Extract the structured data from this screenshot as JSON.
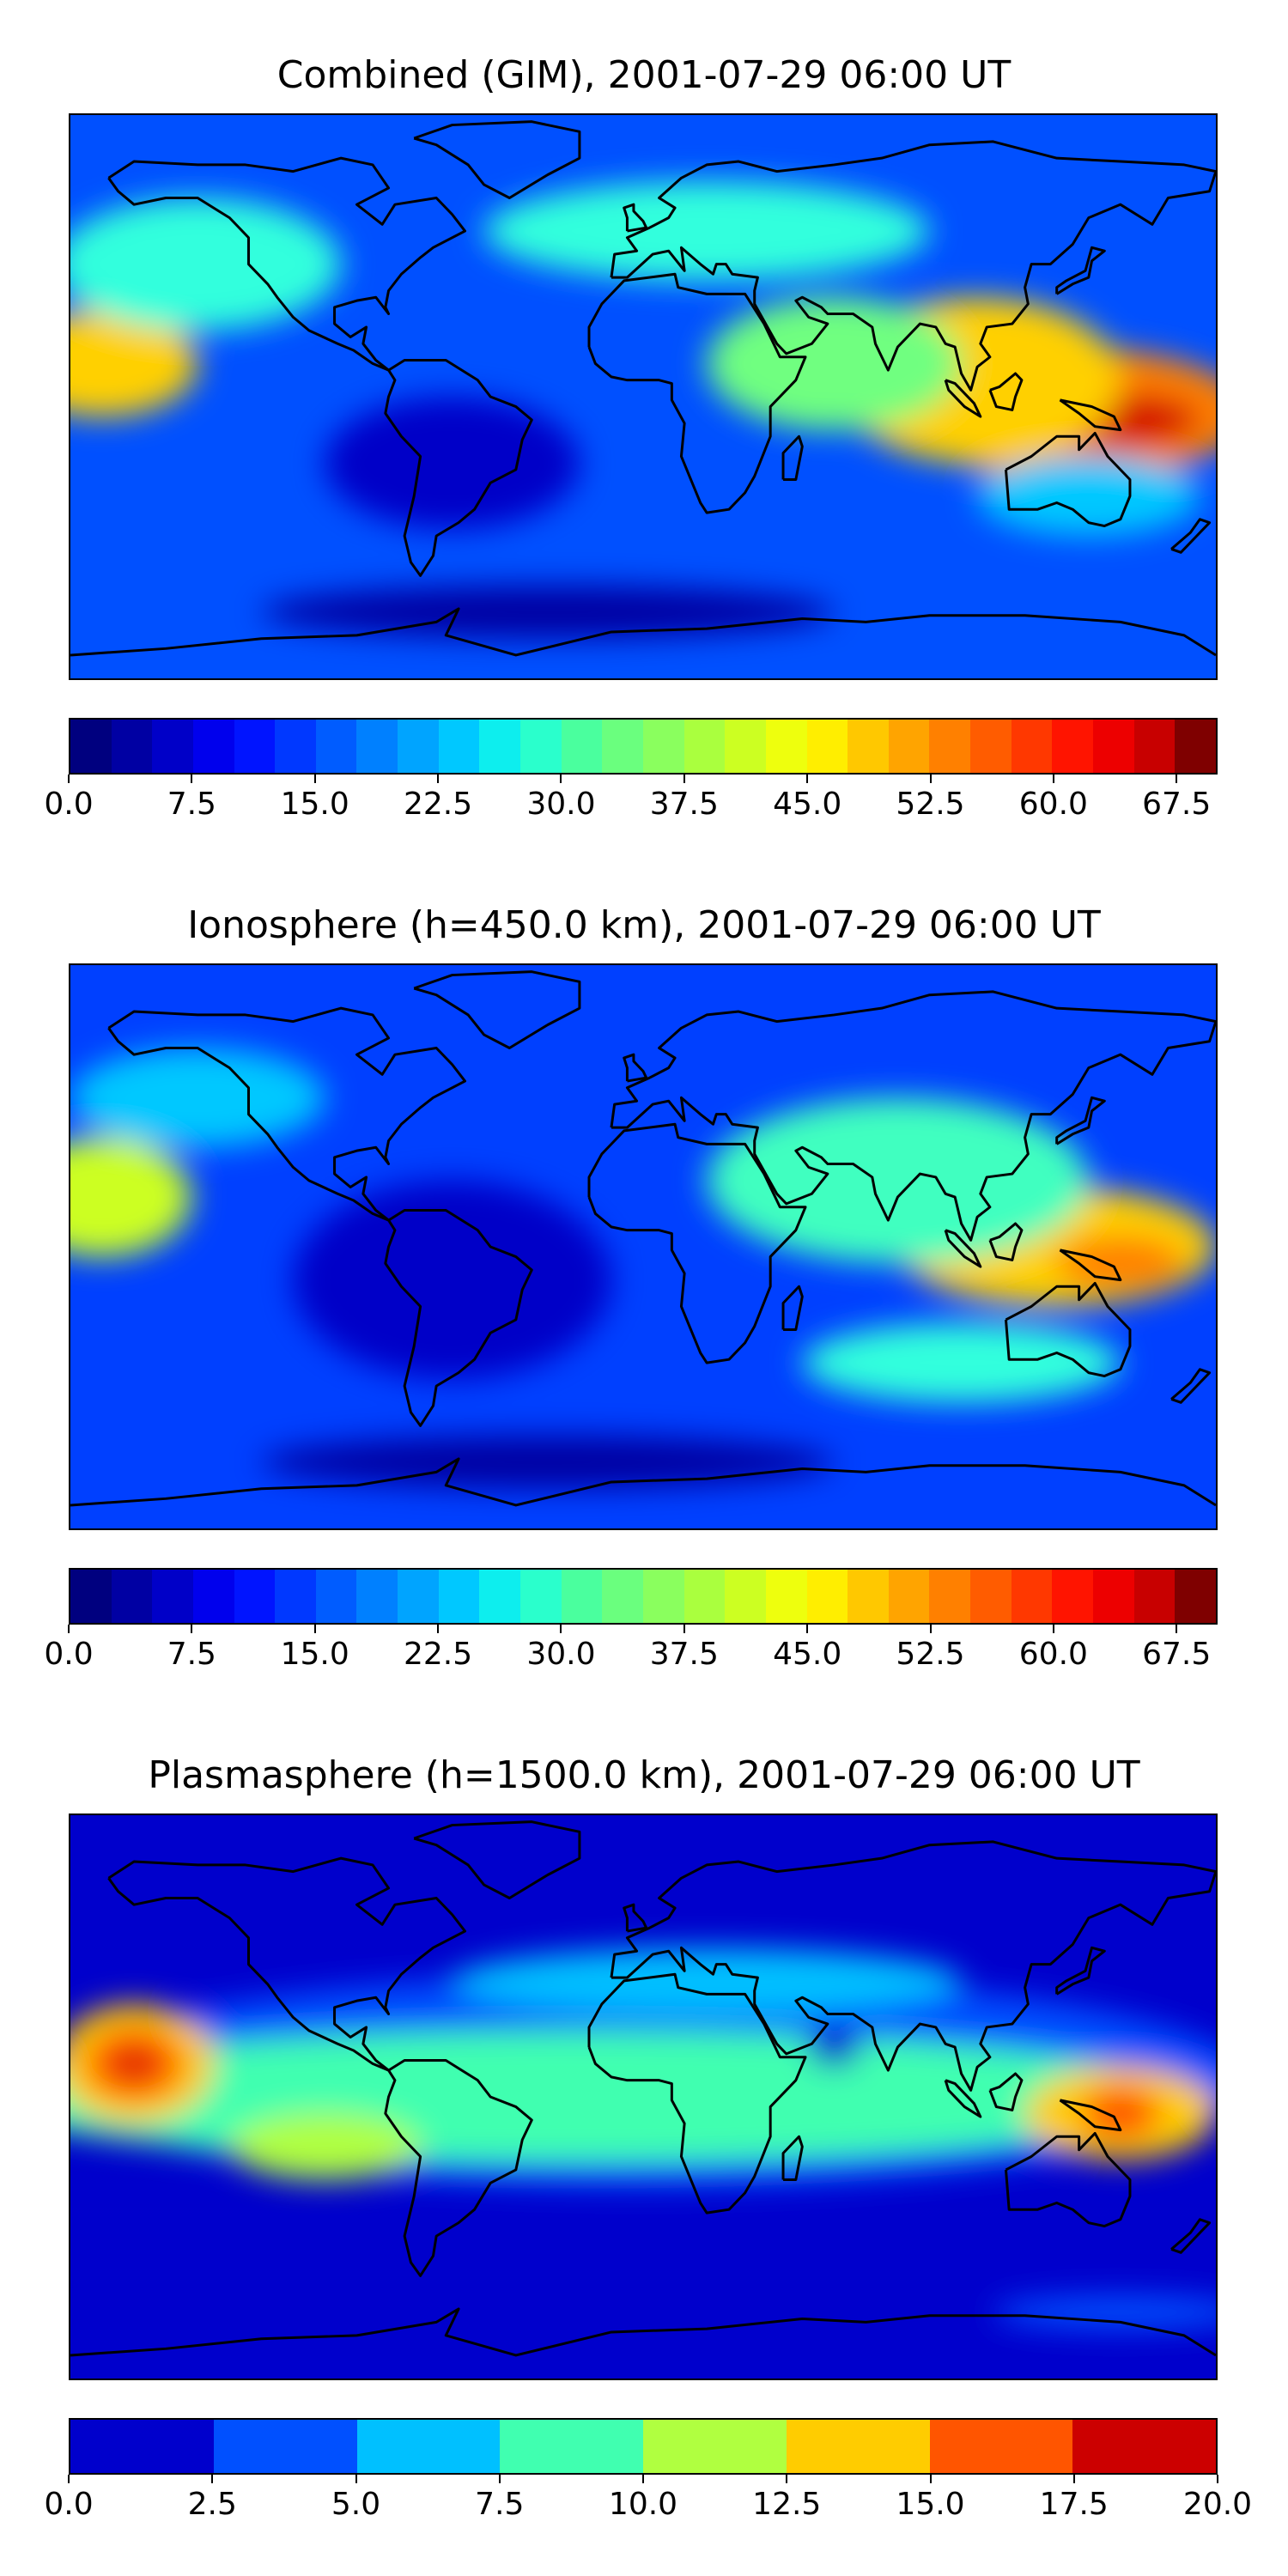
{
  "panels": [
    {
      "title": "Combined (GIM), 2001-07-29 06:00 UT",
      "colorbar": {
        "min": 0,
        "max": 70,
        "levels": 28,
        "tick_labels": [
          "0.0",
          "7.5",
          "15.0",
          "22.5",
          "30.0",
          "37.5",
          "45.0",
          "52.5",
          "60.0",
          "67.5"
        ],
        "tick_values": [
          0,
          7.5,
          15,
          22.5,
          30,
          37.5,
          45,
          52.5,
          60,
          67.5
        ],
        "colors": [
          "#00007f",
          "#0000a3",
          "#0000c8",
          "#0000ed",
          "#0014ff",
          "#0038ff",
          "#005cff",
          "#0080ff",
          "#00a4ff",
          "#00c8ff",
          "#0deeee",
          "#2affcc",
          "#4aff9e",
          "#6aff7e",
          "#8aff5e",
          "#aaff3e",
          "#ccff22",
          "#eeff0d",
          "#ffee00",
          "#ffc800",
          "#ffa400",
          "#ff8000",
          "#ff5c00",
          "#ff3800",
          "#ff1400",
          "#ed0000",
          "#c80000",
          "#7f0000"
        ]
      },
      "map": {
        "background": "#0050ff",
        "blobs": [
          {
            "lon": 135,
            "lat": -5,
            "rx": 55,
            "ry": 20,
            "color": "#ff8000"
          },
          {
            "lon": 150,
            "lat": -7,
            "rx": 25,
            "ry": 8,
            "color": "#d40000"
          },
          {
            "lon": 105,
            "lat": 5,
            "rx": 45,
            "ry": 25,
            "color": "#ffd000"
          },
          {
            "lon": 60,
            "lat": 10,
            "rx": 40,
            "ry": 20,
            "color": "#70ff80"
          },
          {
            "lon": -170,
            "lat": 10,
            "rx": 30,
            "ry": 16,
            "color": "#ffd000"
          },
          {
            "lon": -140,
            "lat": 40,
            "rx": 45,
            "ry": 20,
            "color": "#30ffdd"
          },
          {
            "lon": 20,
            "lat": 50,
            "rx": 70,
            "ry": 15,
            "color": "#30ffdd"
          },
          {
            "lon": -60,
            "lat": -20,
            "rx": 40,
            "ry": 20,
            "color": "#0000c8"
          },
          {
            "lon": -30,
            "lat": -65,
            "rx": 90,
            "ry": 8,
            "color": "#0000a3"
          },
          {
            "lon": 140,
            "lat": -30,
            "rx": 35,
            "ry": 12,
            "color": "#00c8ff"
          }
        ]
      }
    },
    {
      "title": "Ionosphere  (h=450.0 km), 2001-07-29 06:00 UT",
      "colorbar": {
        "min": 0,
        "max": 70,
        "levels": 28,
        "tick_labels": [
          "0.0",
          "7.5",
          "15.0",
          "22.5",
          "30.0",
          "37.5",
          "45.0",
          "52.5",
          "60.0",
          "67.5"
        ],
        "tick_values": [
          0,
          7.5,
          15,
          22.5,
          30,
          37.5,
          45,
          52.5,
          60,
          67.5
        ],
        "colors": [
          "#00007f",
          "#0000a3",
          "#0000c8",
          "#0000ed",
          "#0014ff",
          "#0038ff",
          "#005cff",
          "#0080ff",
          "#00a4ff",
          "#00c8ff",
          "#0deeee",
          "#2affcc",
          "#4aff9e",
          "#6aff7e",
          "#8aff5e",
          "#aaff3e",
          "#ccff22",
          "#eeff0d",
          "#ffee00",
          "#ffc800",
          "#ffa400",
          "#ff8000",
          "#ff5c00",
          "#ff3800",
          "#ff1400",
          "#ed0000",
          "#c80000",
          "#7f0000"
        ]
      },
      "map": {
        "background": "#0040ff",
        "blobs": [
          {
            "lon": 130,
            "lat": 0,
            "rx": 50,
            "ry": 18,
            "color": "#ffd000"
          },
          {
            "lon": 150,
            "lat": -5,
            "rx": 20,
            "ry": 8,
            "color": "#ff8000"
          },
          {
            "lon": 80,
            "lat": 20,
            "rx": 60,
            "ry": 25,
            "color": "#40ffc0"
          },
          {
            "lon": -170,
            "lat": 15,
            "rx": 28,
            "ry": 18,
            "color": "#ccff22"
          },
          {
            "lon": -140,
            "lat": 45,
            "rx": 40,
            "ry": 15,
            "color": "#00c8ff"
          },
          {
            "lon": -60,
            "lat": -10,
            "rx": 50,
            "ry": 30,
            "color": "#0000c8"
          },
          {
            "lon": -30,
            "lat": -65,
            "rx": 90,
            "ry": 8,
            "color": "#0000a3"
          },
          {
            "lon": 100,
            "lat": -35,
            "rx": 50,
            "ry": 12,
            "color": "#30ffdd"
          }
        ]
      }
    },
    {
      "title": "Plasmasphere (h=1500.0 km), 2001-07-29 06:00 UT",
      "colorbar": {
        "min": 0,
        "max": 20,
        "levels": 8,
        "tick_labels": [
          "0.0",
          "2.5",
          "5.0",
          "7.5",
          "10.0",
          "12.5",
          "15.0",
          "17.5",
          "20.0"
        ],
        "tick_values": [
          0,
          2.5,
          5,
          7.5,
          10,
          12.5,
          15,
          17.5,
          20
        ],
        "colors": [
          "#0000cc",
          "#0050ff",
          "#00c0ff",
          "#40ffb0",
          "#b0ff40",
          "#ffcc00",
          "#ff5500",
          "#cc0000"
        ]
      },
      "map": {
        "background": "#0000cc",
        "blobs": [
          {
            "lon": 0,
            "lat": 5,
            "rx": 190,
            "ry": 32,
            "color": "#0050ff"
          },
          {
            "lon": -20,
            "lat": 0,
            "rx": 190,
            "ry": 20,
            "color": "#40ffb0"
          },
          {
            "lon": 20,
            "lat": 35,
            "rx": 80,
            "ry": 10,
            "color": "#00c0ff"
          },
          {
            "lon": -160,
            "lat": 10,
            "rx": 25,
            "ry": 18,
            "color": "#ffcc00"
          },
          {
            "lon": -160,
            "lat": 10,
            "rx": 15,
            "ry": 11,
            "color": "#ff5500"
          },
          {
            "lon": -160,
            "lat": 10,
            "rx": 6,
            "ry": 4,
            "color": "#cc0000"
          },
          {
            "lon": 150,
            "lat": -5,
            "rx": 30,
            "ry": 14,
            "color": "#ffcc00"
          },
          {
            "lon": 150,
            "lat": -5,
            "rx": 12,
            "ry": 8,
            "color": "#ff5500"
          },
          {
            "lon": -100,
            "lat": -15,
            "rx": 30,
            "ry": 10,
            "color": "#b0ff40"
          },
          {
            "lon": 60,
            "lat": 15,
            "rx": 8,
            "ry": 6,
            "color": "#0000cc"
          },
          {
            "lon": 150,
            "lat": -65,
            "rx": 40,
            "ry": 5,
            "color": "#0050ff"
          }
        ]
      }
    }
  ]
}
